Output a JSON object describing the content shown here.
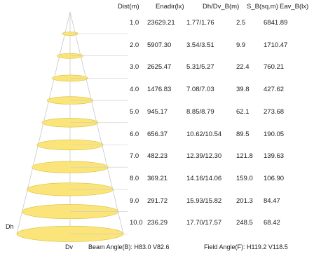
{
  "table": {
    "headers": [
      "Dist(m)",
      "Enadir(lx)",
      "Dh/Dv_B(m)",
      "S_B(sq.m)",
      "Eav_B(lx)"
    ],
    "rows": [
      {
        "dist": "1.0",
        "enadir": "23629.21",
        "dhdv": "1.77/1.76",
        "sb": "2.5",
        "eav": "6841.89"
      },
      {
        "dist": "2.0",
        "enadir": "5907.30",
        "dhdv": "3.54/3.51",
        "sb": "9.9",
        "eav": "1710.47"
      },
      {
        "dist": "3.0",
        "enadir": "2625.47",
        "dhdv": "5.31/5.27",
        "sb": "22.4",
        "eav": "760.21"
      },
      {
        "dist": "4.0",
        "enadir": "1476.83",
        "dhdv": "7.08/7.03",
        "sb": "39.8",
        "eav": "427.62"
      },
      {
        "dist": "5.0",
        "enadir": "945.17",
        "dhdv": "8.85/8.79",
        "sb": "62.1",
        "eav": "273.68"
      },
      {
        "dist": "6.0",
        "enadir": "656.37",
        "dhdv": "10.62/10.54",
        "sb": "89.5",
        "eav": "190.05"
      },
      {
        "dist": "7.0",
        "enadir": "482.23",
        "dhdv": "12.39/12.30",
        "sb": "121.8",
        "eav": "139.63"
      },
      {
        "dist": "8.0",
        "enadir": "369.21",
        "dhdv": "14.16/14.06",
        "sb": "159.0",
        "eav": "106.90"
      },
      {
        "dist": "9.0",
        "enadir": "291.72",
        "dhdv": "15.93/15.82",
        "sb": "201.3",
        "eav": "84.47"
      },
      {
        "dist": "10.0",
        "enadir": "236.29",
        "dhdv": "17.70/17.57",
        "sb": "248.5",
        "eav": "68.42"
      }
    ]
  },
  "labels": {
    "dh": "Dh",
    "dv": "Dv"
  },
  "footer": {
    "beam_angle": "Beam Angle(B): H83.0 V82.6",
    "field_angle": "Field Angle(F): H119.2 V118.5"
  },
  "colors": {
    "ellipse_fill": "#fbe57a",
    "ellipse_stroke": "#d9bf3a",
    "line": "#c9c9c9",
    "text": "#1a1a1a"
  }
}
